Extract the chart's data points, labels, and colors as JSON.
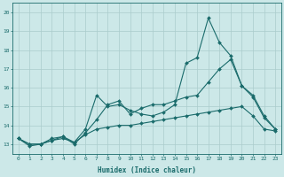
{
  "xlabel": "Humidex (Indice chaleur)",
  "ylabel": "",
  "background_color": "#cce8e8",
  "line_color": "#1a6b6b",
  "grid_color": "#aacccc",
  "xlim": [
    -0.5,
    23.5
  ],
  "ylim": [
    12.5,
    20.5
  ],
  "yticks": [
    13,
    14,
    15,
    16,
    17,
    18,
    19,
    20
  ],
  "xticks": [
    0,
    1,
    2,
    3,
    4,
    5,
    6,
    7,
    8,
    9,
    10,
    11,
    12,
    13,
    14,
    15,
    16,
    17,
    18,
    19,
    20,
    21,
    22,
    23
  ],
  "series": [
    [
      13.3,
      12.9,
      13.0,
      13.3,
      13.4,
      13.1,
      13.8,
      15.6,
      15.0,
      15.1,
      14.8,
      14.6,
      14.5,
      14.7,
      15.1,
      17.3,
      17.6,
      19.7,
      18.4,
      17.7,
      16.1,
      15.5,
      14.4,
      13.8
    ],
    [
      13.3,
      13.0,
      13.0,
      13.2,
      13.4,
      13.0,
      13.6,
      14.3,
      15.1,
      15.3,
      14.6,
      14.9,
      15.1,
      15.1,
      15.3,
      15.5,
      15.6,
      16.3,
      17.0,
      17.5,
      16.1,
      15.6,
      14.5,
      13.8
    ],
    [
      13.3,
      13.0,
      13.0,
      13.2,
      13.3,
      13.1,
      13.5,
      13.8,
      13.9,
      14.0,
      14.0,
      14.1,
      14.2,
      14.3,
      14.4,
      14.5,
      14.6,
      14.7,
      14.8,
      14.9,
      15.0,
      14.5,
      13.8,
      13.7
    ]
  ],
  "fig_width": 3.2,
  "fig_height": 2.0,
  "dpi": 100
}
